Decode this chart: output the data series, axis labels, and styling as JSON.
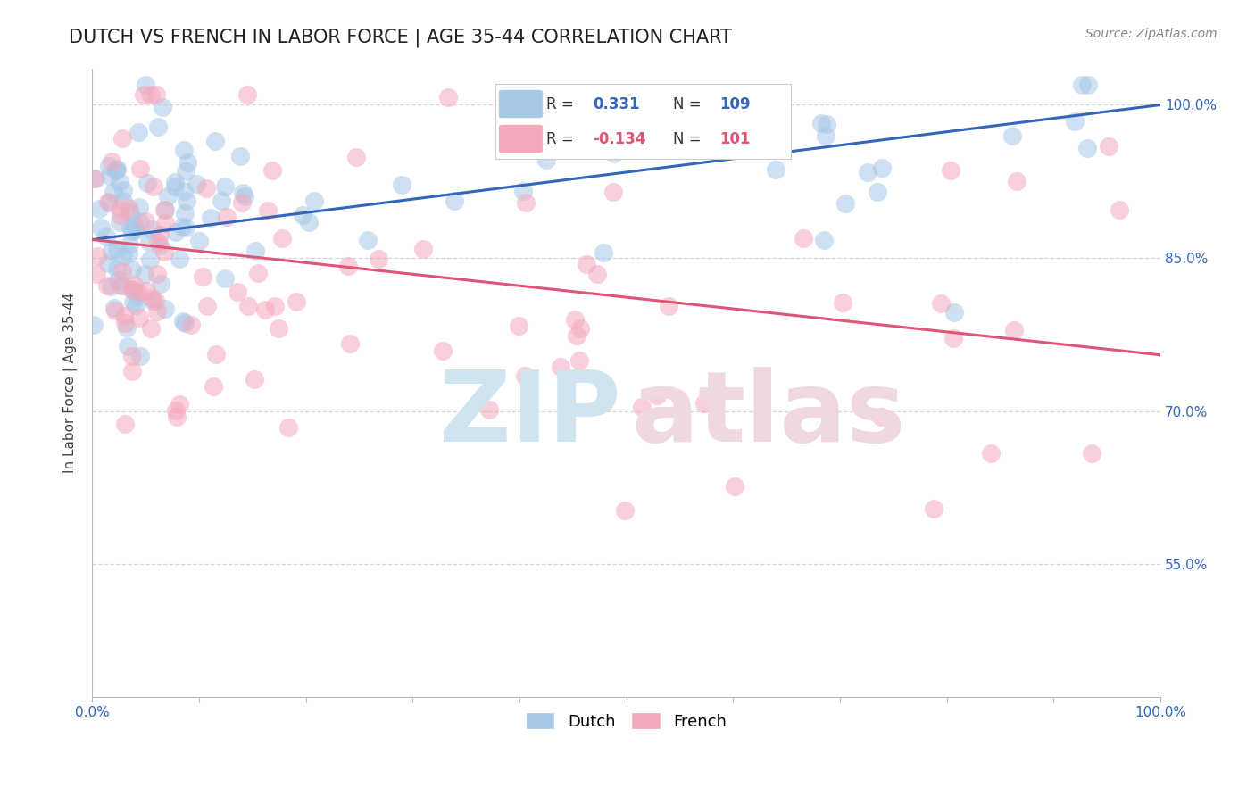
{
  "title": "DUTCH VS FRENCH IN LABOR FORCE | AGE 35-44 CORRELATION CHART",
  "source_text": "Source: ZipAtlas.com",
  "xlabel": "",
  "ylabel": "In Labor Force | Age 35-44",
  "xlim": [
    0.0,
    1.0
  ],
  "ylim": [
    0.42,
    1.035
  ],
  "y_tick_labels": [
    "55.0%",
    "70.0%",
    "85.0%",
    "100.0%"
  ],
  "y_tick_values": [
    0.55,
    0.7,
    0.85,
    1.0
  ],
  "dutch_color": "#a8c8e8",
  "french_color": "#f4a8bc",
  "dutch_line_color": "#3366bb",
  "french_line_color": "#e05575",
  "dutch_R": 0.331,
  "dutch_N": 109,
  "french_R": -0.134,
  "french_N": 101,
  "background_color": "#ffffff",
  "grid_color": "#cccccc",
  "watermark_color_zip": "#d0e4f0",
  "watermark_color_atlas": "#f0d8e0",
  "title_fontsize": 15,
  "axis_label_fontsize": 11,
  "tick_fontsize": 11,
  "legend_fontsize": 13
}
